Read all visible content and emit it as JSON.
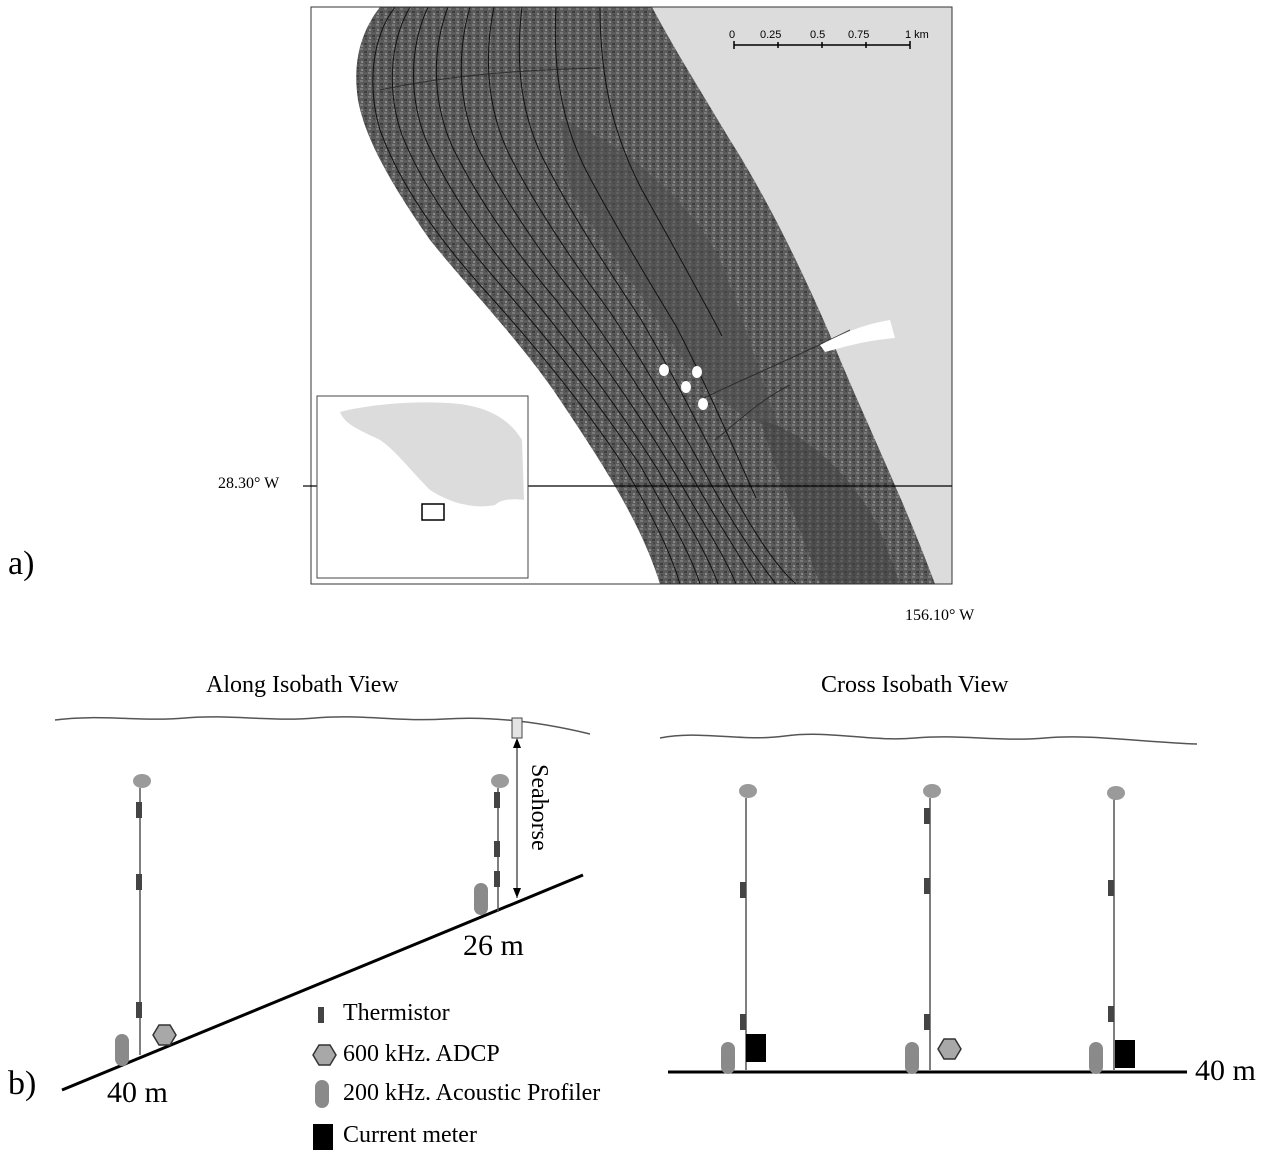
{
  "panel_a": {
    "label": "a)",
    "latitude_label": "28.30° W",
    "longitude_label": "156.10° W",
    "scale_bar": {
      "ticks": [
        "0",
        "0.25",
        "0.5",
        "0.75",
        "1 km"
      ]
    }
  },
  "panel_b": {
    "label": "b)",
    "along_view": {
      "title": "Along Isobath View",
      "seahorse_label": "Seahorse",
      "deep_depth": "40 m",
      "shallow_depth": "26 m"
    },
    "cross_view": {
      "title": "Cross Isobath View",
      "depth": "40 m"
    },
    "legend": [
      {
        "icon": "thermistor-icon",
        "label": "Thermistor"
      },
      {
        "icon": "adcp-hexagon-icon",
        "label": "600 kHz. ADCP"
      },
      {
        "icon": "acoustic-profiler-icon",
        "label": "200 kHz. Acoustic Profiler"
      },
      {
        "icon": "current-meter-icon",
        "label": "Current meter"
      }
    ]
  },
  "colors": {
    "terrain_dark": "#4a4a4a",
    "terrain_mid": "#6e6e6e",
    "land": "#dcdcdc",
    "instrument_gray": "#8a8a8a",
    "thermistor": "#444444",
    "current_meter": "#000000"
  }
}
